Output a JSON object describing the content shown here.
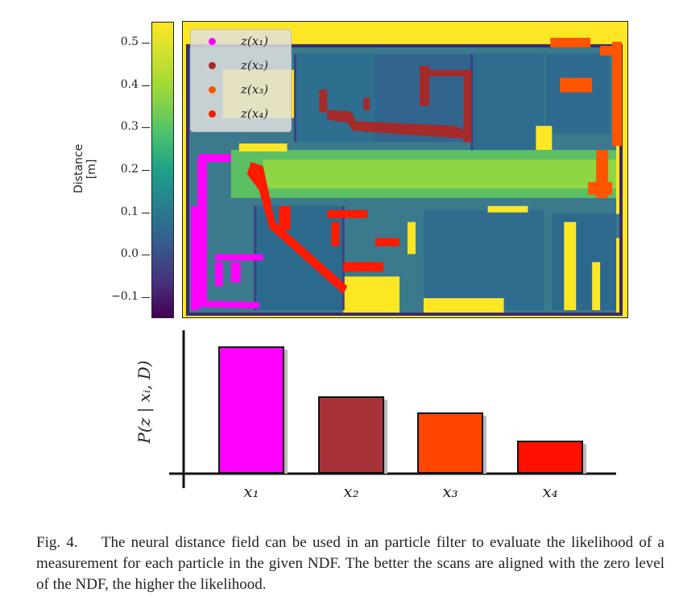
{
  "colorbar": {
    "title": "Distance [m]",
    "ticks": [
      "0.5",
      "0.4",
      "0.3",
      "0.2",
      "0.1",
      "0.0",
      "−0.1"
    ],
    "range": [
      -0.15,
      0.55
    ],
    "colors": [
      "#440154",
      "#365b8d",
      "#1fa088",
      "#9fd938",
      "#fde725"
    ]
  },
  "map": {
    "legend": [
      {
        "label": "z(x₁)",
        "color": "#ff00ff"
      },
      {
        "label": "z(x₂)",
        "color": "#a52a2a"
      },
      {
        "label": "z(x₃)",
        "color": "#ff5500"
      },
      {
        "label": "z(x₄)",
        "color": "#ff1a00"
      }
    ]
  },
  "chart_data": {
    "type": "bar",
    "categories": [
      "x₁",
      "x₂",
      "x₃",
      "x₄"
    ],
    "values": [
      1.0,
      0.61,
      0.48,
      0.26
    ],
    "colors": [
      "#ff00ff",
      "#a8323a",
      "#ff4500",
      "#ff1100"
    ],
    "ylabel": "P(z | xᵢ, D)",
    "ylim": [
      0,
      1.0
    ],
    "xlabel": ""
  },
  "caption": {
    "label": "Fig. 4.",
    "text": "The neural distance field can be used in an particle filter to evaluate the likelihood of a measurement for each particle in the given NDF. The better the scans are aligned with the zero level of the NDF, the higher the likelihood."
  }
}
